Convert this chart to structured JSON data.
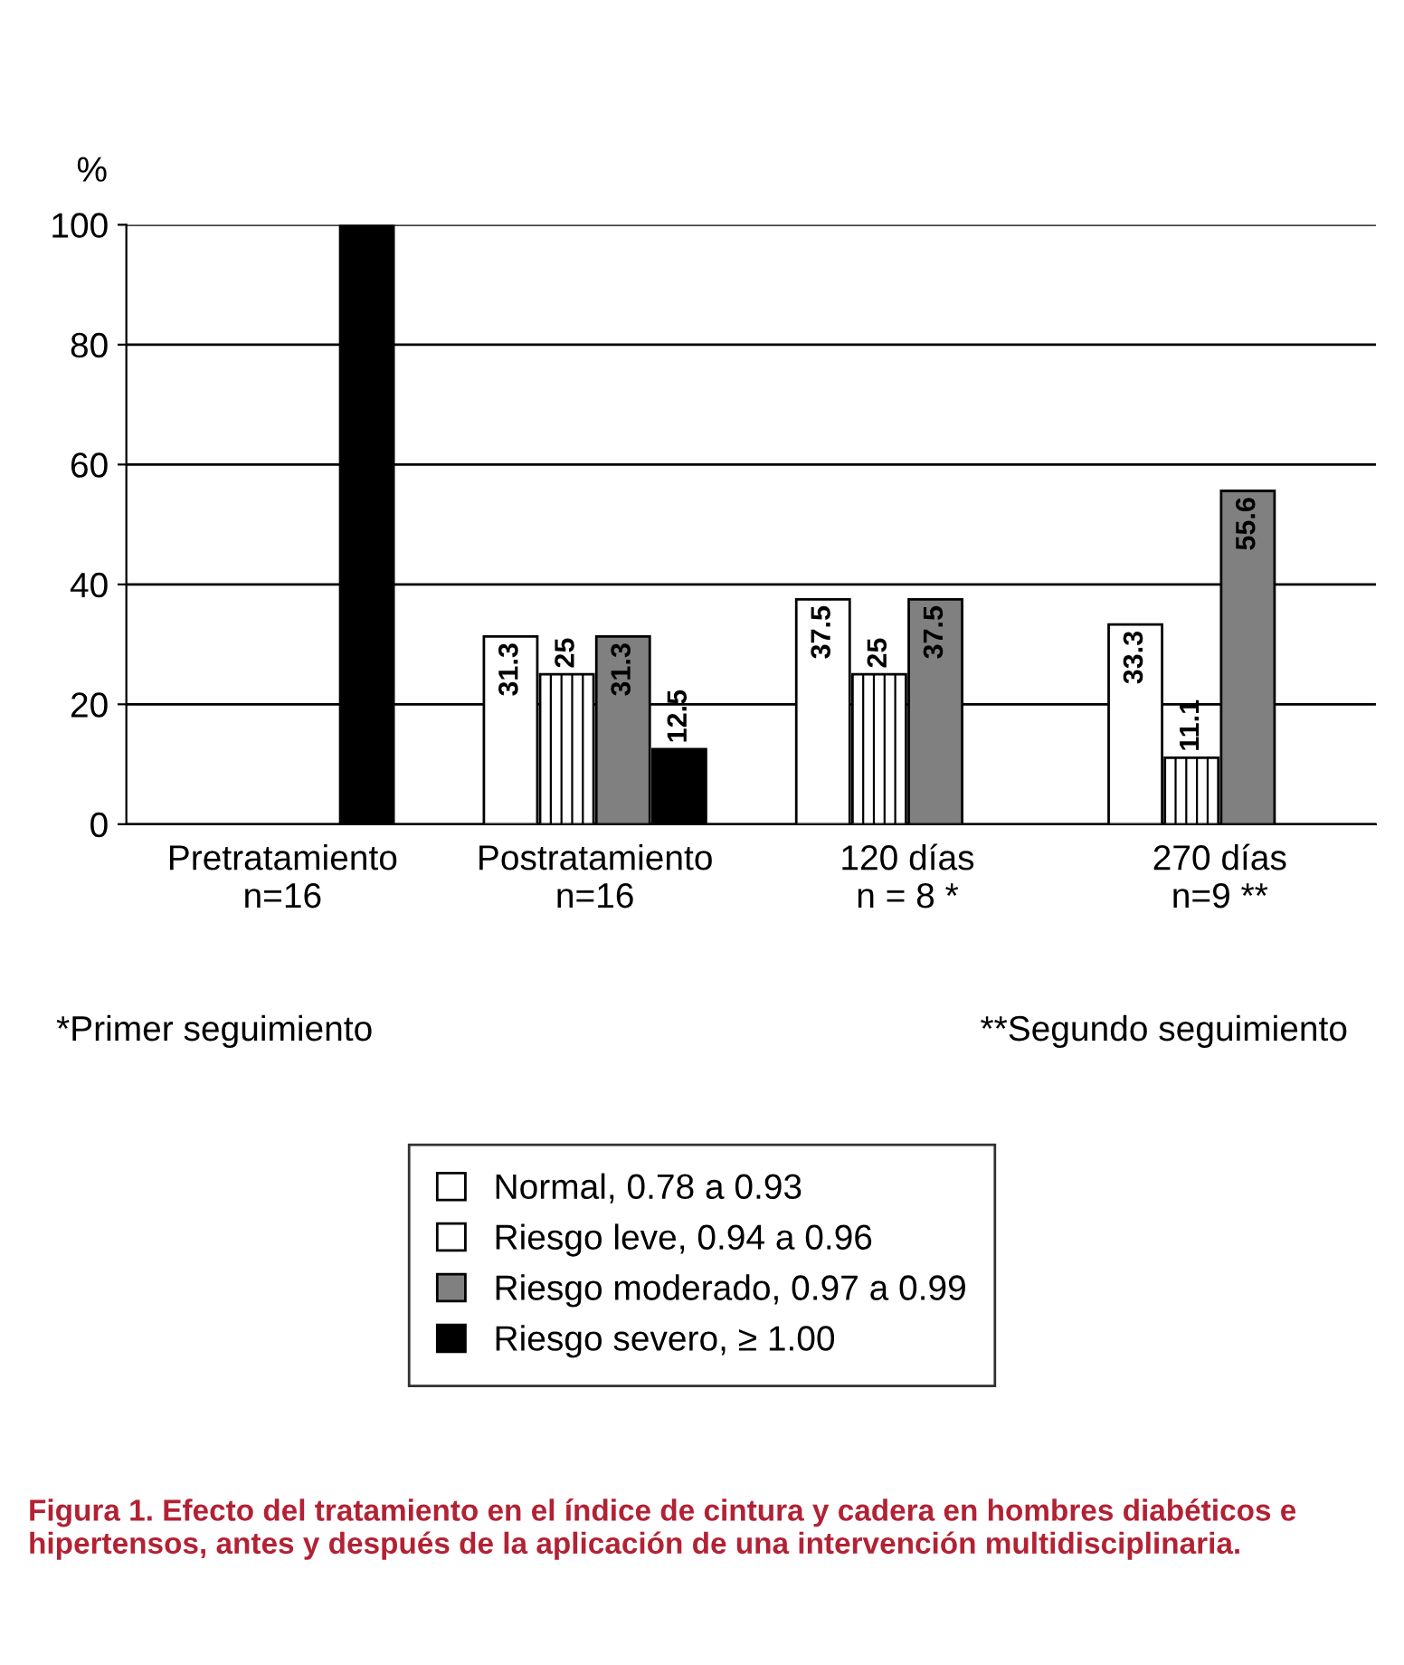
{
  "chart_data": {
    "type": "bar",
    "ylabel": "%",
    "categories": [
      "Pretratamiento\nn=16",
      "Postratamiento\nn=16",
      "120 días\nn = 8 *",
      "270 días\nn=9 **"
    ],
    "series": [
      {
        "name": "Normal, 0.78 a 0.93",
        "color": "#ffffff",
        "values": [
          null,
          31.3,
          37.5,
          33.3
        ],
        "value_labels": [
          null,
          "31.3",
          "37.5",
          "33.3"
        ]
      },
      {
        "name": "Riesgo leve, 0.94 a 0.96",
        "color": "#ffffff",
        "values": [
          null,
          25,
          25,
          11.1
        ],
        "value_labels": [
          null,
          "25",
          "25",
          "11.1"
        ]
      },
      {
        "name": "Riesgo moderado, 0.97 a 0.99",
        "color": "#808080",
        "values": [
          null,
          31.3,
          37.5,
          55.6
        ],
        "value_labels": [
          null,
          "31.3",
          "37.5",
          "55.6"
        ]
      },
      {
        "name": "Riesgo severo, ≥ 1.00",
        "color": "#000000",
        "values": [
          100,
          12.5,
          null,
          null
        ],
        "value_labels": [
          null,
          "12.5",
          null,
          null
        ]
      }
    ],
    "ylim": [
      0,
      100
    ],
    "yticks": [
      0,
      20,
      40,
      60,
      80,
      100
    ],
    "grid": "y",
    "legend": "bottom",
    "annotations": [
      "*Primer seguimiento",
      "**Segundo seguimiento",
      "Figura 1. Efecto del tratamiento en el índice de cintura y cadera en hombres diabéticos e hipertensos, antes y después de la aplicación de una intervención multidisciplinaria."
    ]
  }
}
